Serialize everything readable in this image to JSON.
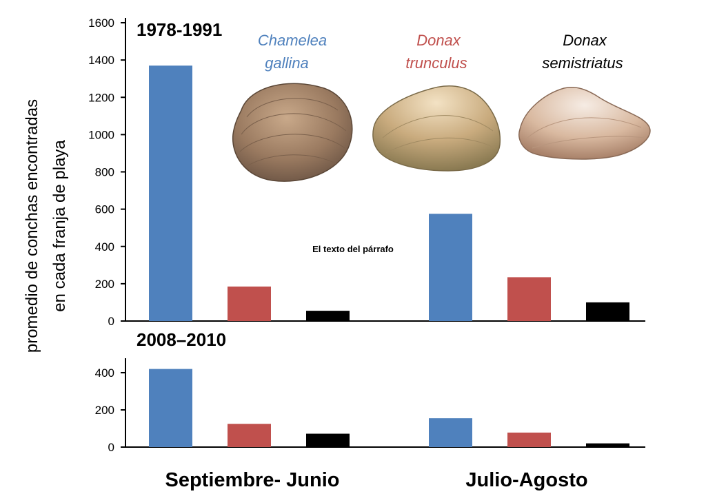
{
  "chart_data": [
    {
      "type": "bar",
      "title": "1978-1991",
      "categories": [
        "Septiembre- Junio",
        "Julio-Agosto"
      ],
      "series": [
        {
          "name": "Chamelea gallina",
          "values": [
            1370,
            575
          ],
          "color": "#4f81bd"
        },
        {
          "name": "Donax trunculus",
          "values": [
            185,
            235
          ],
          "color": "#c0504d"
        },
        {
          "name": "Donax semistriatus",
          "values": [
            55,
            100
          ],
          "color": "#000000"
        }
      ],
      "ylim": [
        0,
        1600
      ],
      "yticks": [
        "0",
        "200",
        "400",
        "600",
        "800",
        "1000",
        "1200",
        "1400",
        "1600"
      ]
    },
    {
      "type": "bar",
      "title": "2008–2010",
      "categories": [
        "Septiembre- Junio",
        "Julio-Agosto"
      ],
      "series": [
        {
          "name": "Chamelea gallina",
          "values": [
            420,
            155
          ],
          "color": "#4f81bd"
        },
        {
          "name": "Donax trunculus",
          "values": [
            125,
            78
          ],
          "color": "#c0504d"
        },
        {
          "name": "Donax semistriatus",
          "values": [
            72,
            20
          ],
          "color": "#000000"
        }
      ],
      "ylim": [
        0,
        400
      ],
      "yticks": [
        "0",
        "200",
        "400"
      ]
    }
  ],
  "ylabel_line1": "promedio de conchas encontradas",
  "ylabel_line2": "en cada franja de playa",
  "species_labels": [
    {
      "line1": "Chamelea",
      "line2": "gallina",
      "color": "#4f81bd"
    },
    {
      "line1": "Donax",
      "line2": "trunculus",
      "color": "#c0504d"
    },
    {
      "line1": "Donax",
      "line2": "semistriatus",
      "color": "#000000"
    }
  ],
  "annotation": "El texto del párrafo",
  "icons": [
    "chamelea-gallina-shell-icon",
    "donax-trunculus-shell-icon",
    "donax-semistriatus-shell-icon"
  ]
}
